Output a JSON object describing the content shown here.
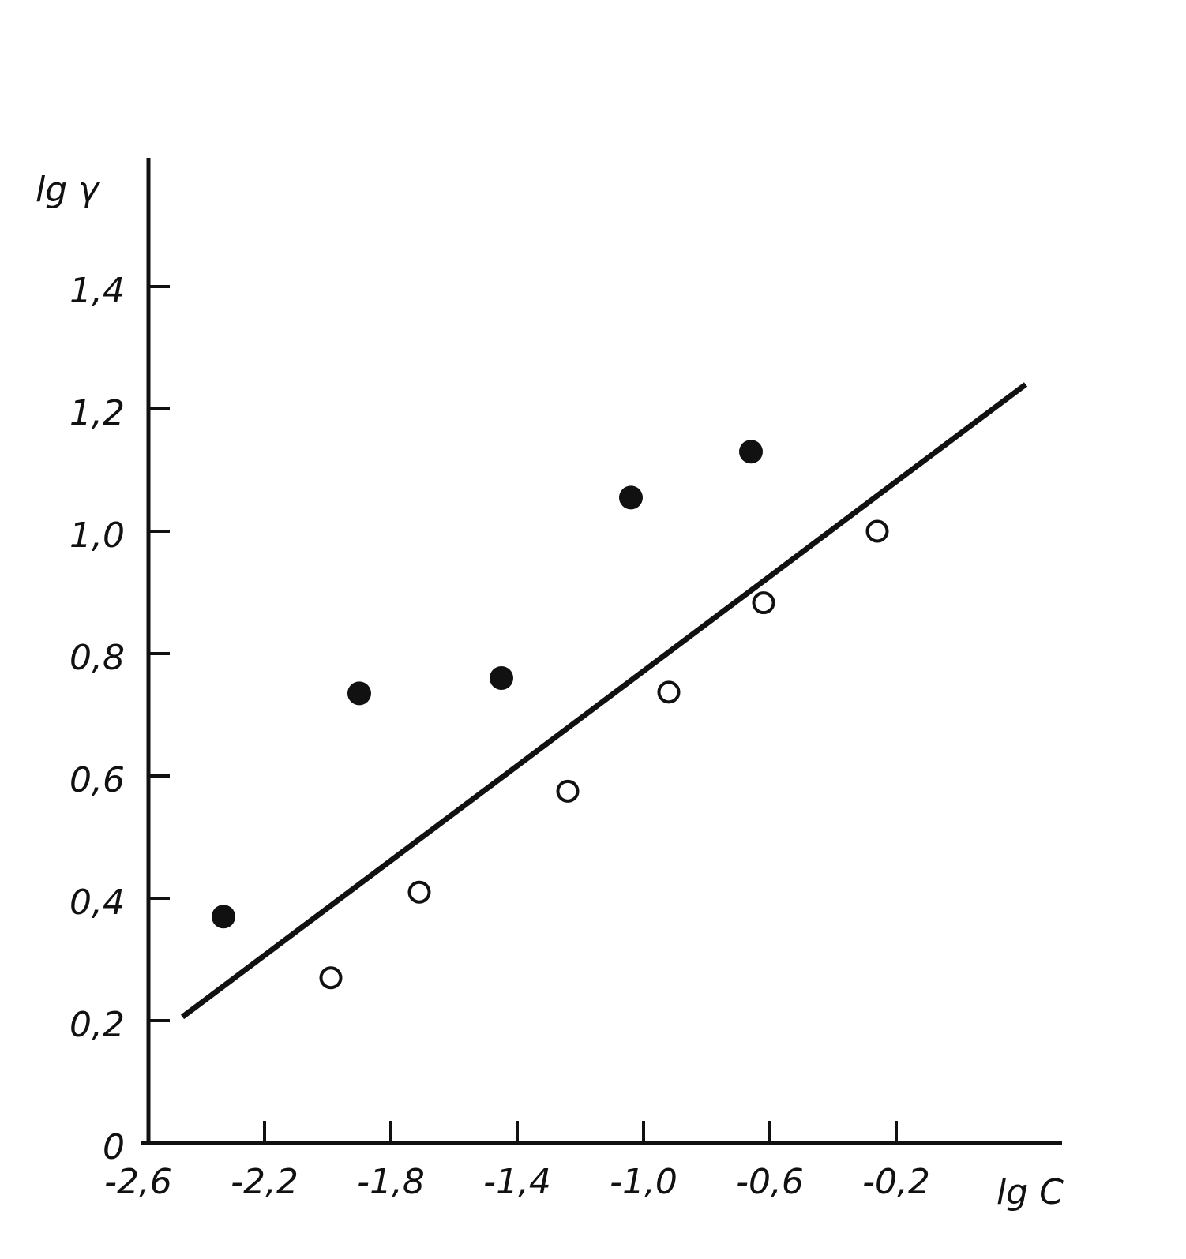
{
  "chart_data": {
    "type": "scatter",
    "title": "",
    "xlabel": "lg C",
    "ylabel": "lg γ",
    "xlim": [
      -2.6,
      0.3
    ],
    "ylim": [
      0,
      1.6
    ],
    "grid": false,
    "x_ticks": [
      -2.6,
      -2.2,
      -1.8,
      -1.4,
      -1.0,
      -0.6,
      -0.2
    ],
    "x_tick_labels": [
      "-2,6",
      "-2,2",
      "-1,8",
      "-1,4",
      "-1,0",
      "-0,6",
      "-0,2"
    ],
    "y_ticks": [
      0,
      0.2,
      0.4,
      0.6,
      0.8,
      1.0,
      1.2,
      1.4
    ],
    "y_tick_labels": [
      "0",
      "0,2",
      "0,4",
      "0,6",
      "0,8",
      "1,0",
      "1,2",
      "1,4"
    ],
    "series": [
      {
        "marker": "filled-circle",
        "points": [
          {
            "x": -2.33,
            "y": 0.37
          },
          {
            "x": -1.9,
            "y": 0.735
          },
          {
            "x": -1.45,
            "y": 0.76
          },
          {
            "x": -1.04,
            "y": 1.055
          },
          {
            "x": -0.66,
            "y": 1.13
          }
        ]
      },
      {
        "marker": "open-circle",
        "points": [
          {
            "x": -1.99,
            "y": 0.27
          },
          {
            "x": -1.71,
            "y": 0.41
          },
          {
            "x": -1.24,
            "y": 0.575
          },
          {
            "x": -0.92,
            "y": 0.737
          },
          {
            "x": -0.62,
            "y": 0.883
          },
          {
            "x": -0.26,
            "y": 1.0
          }
        ]
      }
    ],
    "fit_line": {
      "x": [
        -2.46,
        0.21
      ],
      "y": [
        0.206,
        1.24
      ]
    },
    "colors": {
      "ink": "#111111",
      "background": "#ffffff"
    }
  }
}
